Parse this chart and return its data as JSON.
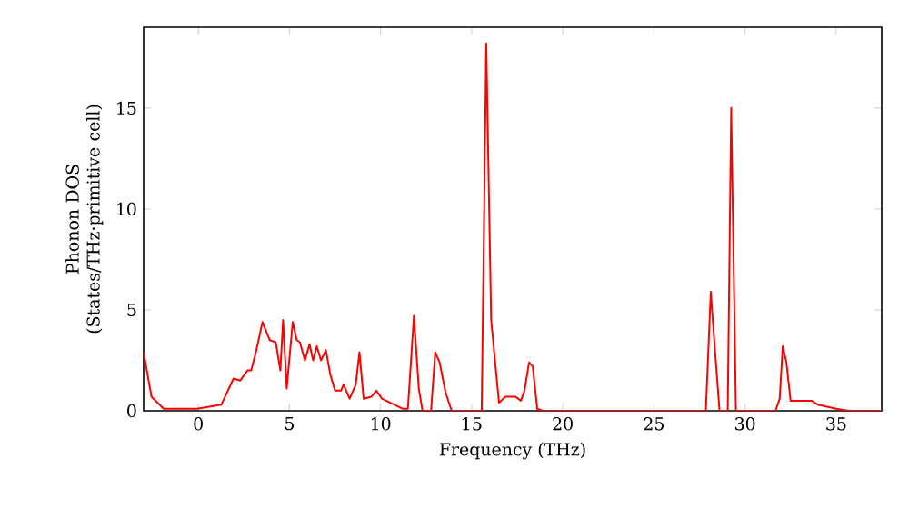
{
  "chart_data": {
    "type": "line",
    "xlabel": "Frequency (THz)",
    "ylabel": "Phonon DOS (States/THz·primitive cell)",
    "xlim": [
      -3,
      37.5
    ],
    "ylim": [
      0,
      19
    ],
    "xticks": [
      0,
      5,
      10,
      15,
      20,
      25,
      30,
      35
    ],
    "yticks": [
      0,
      5,
      10,
      15
    ],
    "series": [
      {
        "color": "#ff0000",
        "x": [
          -3,
          -2.57,
          -1.9,
          -1.5,
          -0.5,
          -0.07,
          1.26,
          1.93,
          2.3,
          2.7,
          2.9,
          3.16,
          3.52,
          3.92,
          4.25,
          4.5,
          4.65,
          4.85,
          5.18,
          5.4,
          5.57,
          5.85,
          6.1,
          6.3,
          6.5,
          6.73,
          7.0,
          7.24,
          7.5,
          7.83,
          7.97,
          8.3,
          8.64,
          8.84,
          9.07,
          9.5,
          9.77,
          10.07,
          11.23,
          11.5,
          11.83,
          12.1,
          12.3,
          12.77,
          13.0,
          13.24,
          13.57,
          13.9,
          15.55,
          15.8,
          16.07,
          16.5,
          16.85,
          17.4,
          17.7,
          17.9,
          18.15,
          18.35,
          18.6,
          18.9,
          27.85,
          28.12,
          28.35,
          28.6,
          29.05,
          29.24,
          29.5,
          31.67,
          31.9,
          32.07,
          32.27,
          32.5,
          33.65,
          34.0,
          35.0,
          35.7,
          37.5
        ],
        "values": [
          2.9,
          0.7,
          0.1,
          0.1,
          0.1,
          0.1,
          0.3,
          1.6,
          1.5,
          2.0,
          2.0,
          2.9,
          4.4,
          3.5,
          3.4,
          2.0,
          4.5,
          1.1,
          4.4,
          3.5,
          3.4,
          2.5,
          3.3,
          2.5,
          3.2,
          2.5,
          3.0,
          1.8,
          1.0,
          1.0,
          1.3,
          0.6,
          1.3,
          2.9,
          0.6,
          0.7,
          1.0,
          0.6,
          0.1,
          0.1,
          4.7,
          1.1,
          0,
          0,
          2.9,
          2.4,
          0.9,
          0,
          0,
          18.2,
          4.5,
          0.4,
          0.7,
          0.7,
          0.5,
          1.0,
          2.4,
          2.2,
          0.1,
          0,
          0,
          5.9,
          3.0,
          0,
          0,
          15.0,
          0,
          0,
          0.6,
          3.2,
          2.4,
          0.5,
          0.5,
          0.3,
          0.1,
          0,
          0
        ]
      }
    ]
  }
}
